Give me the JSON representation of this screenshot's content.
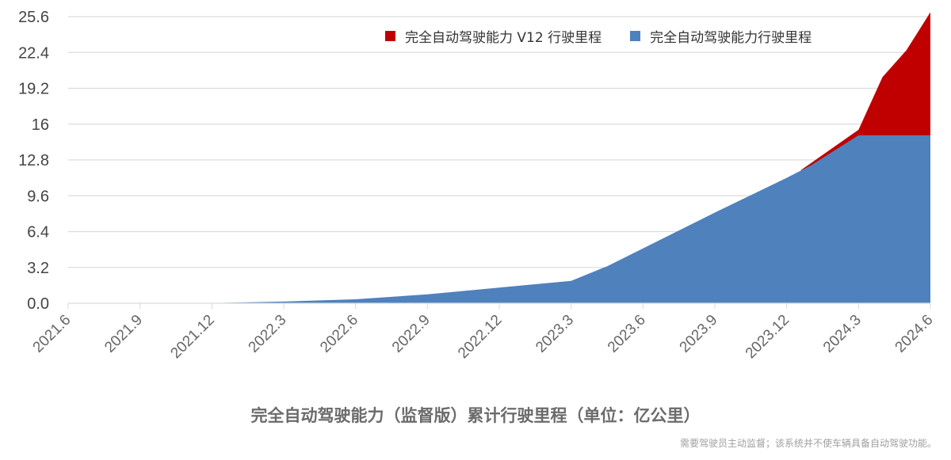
{
  "chart_data": {
    "type": "area",
    "stacked": true,
    "title": "完全自动驾驶能力（监督版）累计行驶里程（单位：亿公里）",
    "xlabel": "",
    "ylabel": "",
    "unit": "亿公里",
    "ylim": [
      0,
      25.6
    ],
    "yticks": [
      "0.0",
      "3.2",
      "6.4",
      "9.6",
      "12.8",
      "16",
      "19.2",
      "22.4",
      "25.6"
    ],
    "categories": [
      "2021.6",
      "2021.9",
      "2021.12",
      "2022.3",
      "2022.6",
      "2022.9",
      "2022.12",
      "2023.3",
      "2023.6",
      "2023.9",
      "2023.12",
      "2024.3",
      "2024.6"
    ],
    "grid": true,
    "legend_position": "top-right",
    "series": [
      {
        "name": "完全自动驾驶能力行驶里程",
        "color": "#4f81bd",
        "points_month_index": [
          0,
          5.5,
          6,
          9,
          12,
          15,
          18,
          21,
          22.5,
          24,
          27,
          30,
          31,
          33,
          36
        ],
        "values": [
          0,
          0,
          0.02,
          0.15,
          0.35,
          0.8,
          1.4,
          2.0,
          3.3,
          4.9,
          8.1,
          11.2,
          12.3,
          15.0,
          15.0
        ]
      },
      {
        "name": "完全自动驾驶能力 V12 行驶里程",
        "color": "#c00000",
        "cumulative_total_points_month_index": [
          30.6,
          33,
          34,
          35,
          36
        ],
        "cumulative_total_values": [
          11.9,
          15.5,
          20.2,
          22.6,
          26.0
        ],
        "values_at_2024.6": 11.0
      }
    ],
    "note": "x index = months since 2021.6 (2024.6 = 36)"
  },
  "legend": {
    "items": [
      {
        "label": "完全自动驾驶能力 V12 行驶里程",
        "color": "#c00000"
      },
      {
        "label": "完全自动驾驶能力行驶里程",
        "color": "#4f81bd"
      }
    ]
  },
  "footer": {
    "title": "完全自动驾驶能力（监督版）累计行驶里程（单位：亿公里）",
    "disclaimer": "需要驾驶员主动监督；该系统并不使车辆具备自动驾驶功能。"
  }
}
